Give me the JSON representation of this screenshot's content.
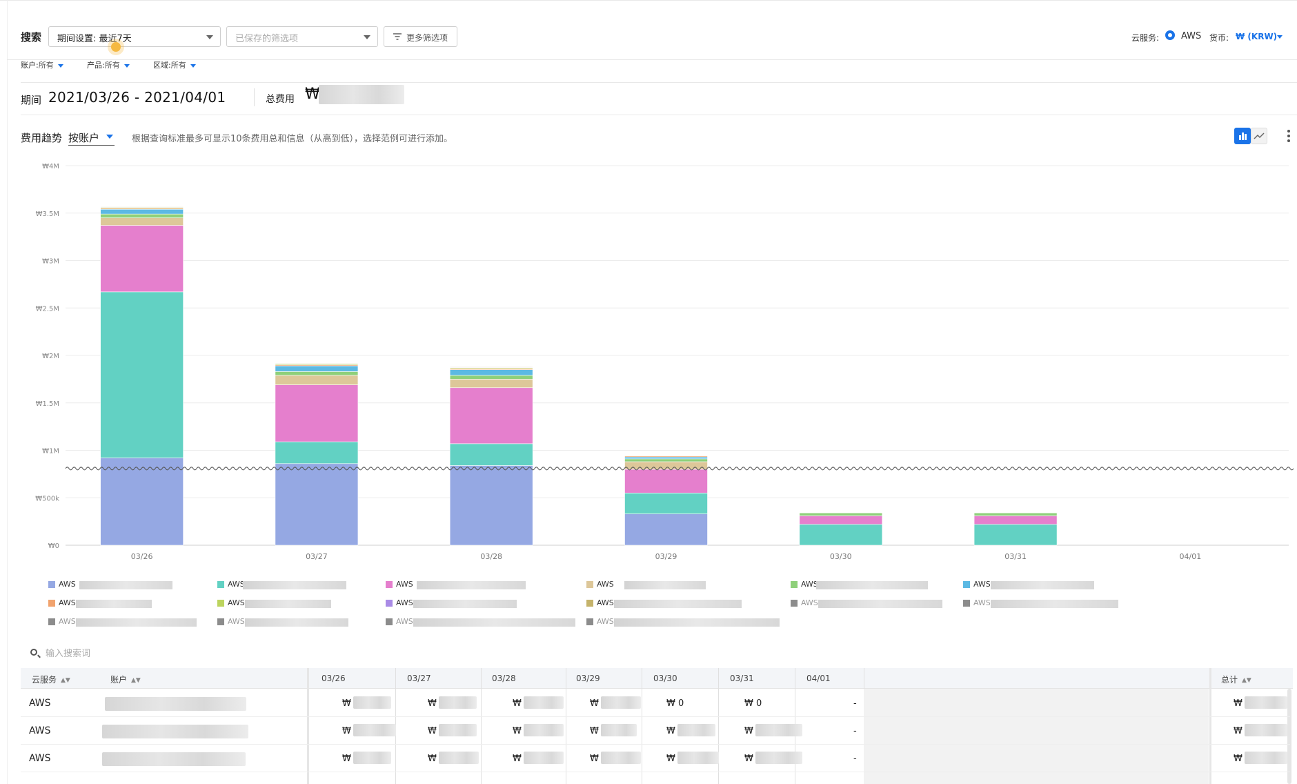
{
  "search": {
    "label": "搜索",
    "period_select": "期间设置: 最近7天",
    "saved_filters_placeholder": "已保存的筛选项",
    "more_filters": "更多筛选项"
  },
  "header_right": {
    "cloud_label": "云服务:",
    "cloud_value": "AWS",
    "currency_label": "货币:",
    "currency_value": "₩ (KRW)"
  },
  "filters": [
    {
      "label": "账户:",
      "value": "所有"
    },
    {
      "label": "产品:",
      "value": "所有"
    },
    {
      "label": "区域:",
      "value": "所有"
    }
  ],
  "period": {
    "label": "期间",
    "value": "2021/03/26 - 2021/04/01",
    "total_label": "总费用",
    "currency_symbol": "₩"
  },
  "trend": {
    "label": "费用趋势",
    "group_by": "按账户",
    "hint": "根据查询标准最多可显示10条费用总和信息（从高到低），选择范例可进行添加。"
  },
  "chart_data": {
    "type": "bar",
    "stacked": true,
    "axis_break_between": [
      500000,
      1000000
    ],
    "categories": [
      "03/26",
      "03/27",
      "03/28",
      "03/29",
      "03/30",
      "03/31",
      "04/01"
    ],
    "y_ticks": [
      "₩0",
      "₩500k",
      "₩1M",
      "₩1.5M",
      "₩2M",
      "₩2.5M",
      "₩3M",
      "₩3.5M",
      "₩4M"
    ],
    "ylim": [
      0,
      4000000
    ],
    "grid": true,
    "series": [
      {
        "color": "#95a8e3",
        "values": [
          920000,
          860000,
          840000,
          330000,
          0,
          0,
          0
        ]
      },
      {
        "color": "#62d1c3",
        "values": [
          1750000,
          230000,
          230000,
          220000,
          220000,
          220000,
          0
        ]
      },
      {
        "color": "#e57fcd",
        "values": [
          700000,
          600000,
          590000,
          250000,
          90000,
          90000,
          0
        ]
      },
      {
        "color": "#ddc799",
        "values": [
          80000,
          100000,
          90000,
          80000,
          0,
          0,
          0
        ]
      },
      {
        "color": "#8ed07a",
        "values": [
          40000,
          40000,
          40000,
          30000,
          30000,
          30000,
          0
        ]
      },
      {
        "color": "#5cb9e3",
        "values": [
          50000,
          60000,
          60000,
          20000,
          0,
          0,
          0
        ]
      },
      {
        "color": "#f1a36e",
        "values": [
          10000,
          10000,
          10000,
          10000,
          0,
          0,
          0
        ]
      },
      {
        "color": "#bcd45e",
        "values": [
          10000,
          10000,
          10000,
          5000,
          0,
          0,
          0
        ]
      },
      {
        "color": "#a98be6",
        "values": [
          5000,
          5000,
          5000,
          0,
          0,
          0,
          0
        ]
      },
      {
        "color": "#c5b36b",
        "values": [
          5000,
          5000,
          5000,
          0,
          0,
          0,
          0
        ]
      }
    ]
  },
  "legend": [
    {
      "prefix": "AWS",
      "color": "#95a8e3"
    },
    {
      "prefix": "AWS",
      "color": "#62d1c3"
    },
    {
      "prefix": "AWS",
      "color": "#e57fcd"
    },
    {
      "prefix": "AWS",
      "color": "#ddc799"
    },
    {
      "prefix": "AWS",
      "color": "#8ed07a"
    },
    {
      "prefix": "AWS",
      "color": "#5cb9e3"
    },
    {
      "prefix": "AWS",
      "color": "#f1a36e"
    },
    {
      "prefix": "AWS",
      "color": "#bcd45e"
    },
    {
      "prefix": "AWS",
      "color": "#a98be6"
    },
    {
      "prefix": "AWS",
      "color": "#c5b36b"
    },
    {
      "prefix": "AWS",
      "color": "#8c8c8c"
    },
    {
      "prefix": "AWS",
      "color": "#8c8c8c"
    },
    {
      "prefix": "AWS",
      "color": "#8c8c8c"
    },
    {
      "prefix": "AWS",
      "color": "#8c8c8c"
    },
    {
      "prefix": "AWS",
      "color": "#8c8c8c"
    },
    {
      "prefix": "AWS",
      "color": "#8c8c8c"
    }
  ],
  "table": {
    "search_placeholder": "输入搜索词",
    "col_cloud": "云服务",
    "col_account": "账户",
    "date_columns": [
      "03/26",
      "03/27",
      "03/28",
      "03/29",
      "03/30",
      "03/31",
      "04/01"
    ],
    "col_total": "总计",
    "rows": [
      {
        "cloud": "AWS",
        "cells": [
          "₩",
          "₩",
          "₩",
          "₩",
          "₩ 0",
          "₩ 0",
          "-"
        ],
        "total": "₩"
      },
      {
        "cloud": "AWS",
        "cells": [
          "₩",
          "₩",
          "₩",
          "₩",
          "₩",
          "₩",
          "-"
        ],
        "total": "₩"
      },
      {
        "cloud": "AWS",
        "cells": [
          "₩",
          "₩",
          "₩",
          "₩",
          "₩",
          "₩",
          "-"
        ],
        "total": "₩"
      }
    ]
  }
}
